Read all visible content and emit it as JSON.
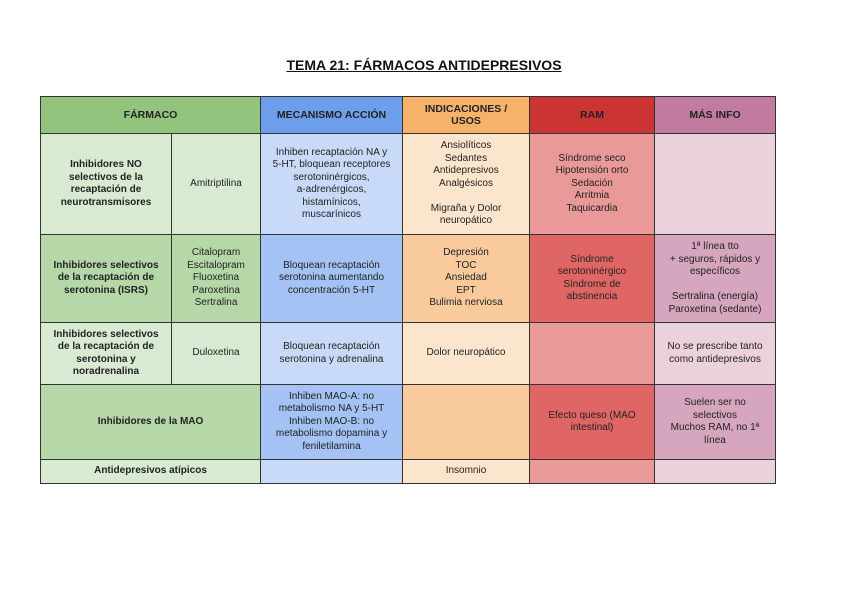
{
  "title": "TEMA 21: FÁRMACOS ANTIDEPRESIVOS",
  "headers": [
    "FÁRMACO",
    "MECANISMO ACCIÓN",
    "INDICACIONES /\nUSOS",
    "RAM",
    "MÁS INFO"
  ],
  "rows": [
    {
      "group": "Inhibidores NO\nselectivos de la\nrecaptación de\nneurotransmisores",
      "drugs": "Amitriptilina",
      "mechanism": "Inhiben recaptación NA y\n5-HT, bloquean receptores\nserotoninérgicos,\na-adrenérgicos,\nhistamínicos,\nmuscarínicos",
      "indications": "Ansiolíticos\nSedantes\nAntidepresivos\nAnalgésicos\n\nMigraña y Dolor\nneuropático",
      "ram": "Síndrome seco\nHipotensión orto\nSedación\nArritmia\nTaquicardia",
      "info": ""
    },
    {
      "group": "Inhibidores selectivos\nde la recaptación de\nserotonina (ISRS)",
      "drugs": "Citalopram\nEscitalopram\nFluoxetina\nParoxetina\nSertralina",
      "mechanism": "Bloquean recaptación\nserotonina aumentando\nconcentración 5-HT",
      "indications": "Depresión\nTOC\nAnsiedad\nEPT\nBulimia nerviosa",
      "ram": "Síndrome\nserotoninérgico\nSíndrome de\nabstinencia",
      "info": "1ª línea tto\n+ seguros, rápidos y\nespecíficos\n\nSertralina (energía)\nParoxetina (sedante)"
    },
    {
      "group": "Inhibidores selectivos\nde la recaptación de\nserotonina y\nnoradrenalina",
      "drugs": "Duloxetina",
      "mechanism": "Bloquean recaptación\nserotonina y adrenalina",
      "indications": "Dolor neuropático",
      "ram": "",
      "info": "No se prescribe tanto\ncomo antidepresivos"
    },
    {
      "group": "Inhibidores de la MAO",
      "mechanism": "Inhiben MAO-A: no\nmetabolismo NA y 5-HT\nInhiben MAO-B: no\nmetabolismo dopamina y\nfeniletilamina",
      "indications": "",
      "ram": "Efecto queso (MAO\nintestinal)",
      "info": "Suelen ser no\nselectivos\nMuchos RAM, no 1ª\nlínea"
    },
    {
      "group": "Antidepresivos atípicos",
      "mechanism": "",
      "indications": "Insomnio",
      "ram": "",
      "info": ""
    }
  ],
  "colors": {
    "farmaco": "#93c47d",
    "mecanismo": "#6d9eeb",
    "indicaciones": "#f6b26b",
    "ram": "#cc3333",
    "info": "#c27ba0"
  }
}
